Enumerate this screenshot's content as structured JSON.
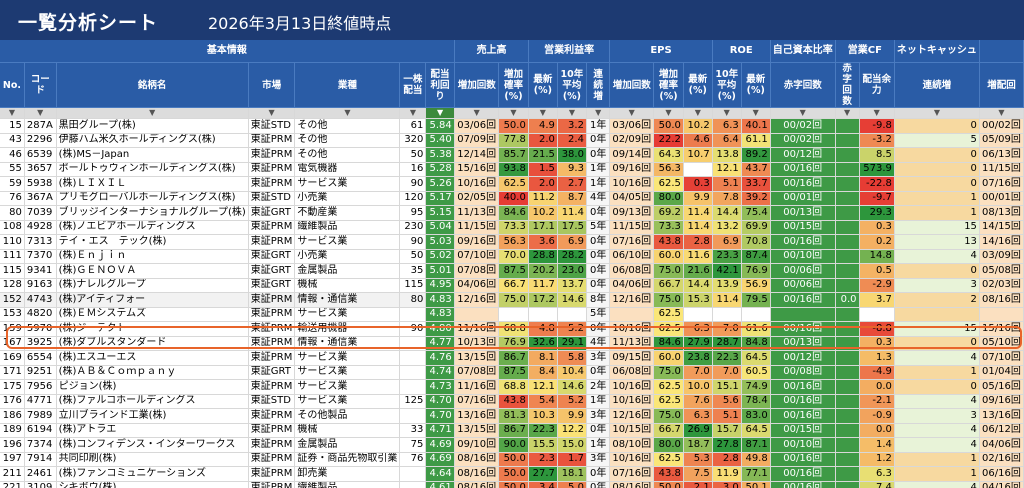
{
  "title": "一覧分析シート",
  "as_of": "2026年3月13日終値時点",
  "groups": [
    "基本情報",
    "売上高",
    "営業利益率",
    "EPS",
    "ROE",
    "自己資本比率",
    "営業CF",
    "ネットキャッシュ",
    ""
  ],
  "columns": [
    "No.",
    "コード",
    "銘柄名",
    "市場",
    "業種",
    "一株配当",
    "配当利回り",
    "増加回数",
    "増加確率(%)",
    "最新(%)",
    "10年平均(%)",
    "連続増",
    "増加回数",
    "増加確率(%)",
    "最新(%)",
    "10年平均(%)",
    "最新(%)",
    "赤字回数",
    "赤字回数",
    "配当余力",
    "連続増",
    "増配回"
  ],
  "filter_glyph": "▼",
  "highlight_index": 12,
  "rows": [
    {
      "no": "15",
      "code": "287A",
      "name": "黒田グループ(株)",
      "market": "東証STD",
      "sector": "その他",
      "div": "61",
      "yield": "5.84",
      "c": [
        "03/06回",
        "50.0",
        "4.9",
        "3.2",
        "1年",
        "03/06回",
        "50.0",
        "10.2",
        "6.3",
        "40.1",
        "00/02回",
        "",
        "-9.8",
        "0",
        "00/02回"
      ]
    },
    {
      "no": "43",
      "code": "2296",
      "name": "伊藤ハム米久ホールディングス(株)",
      "market": "東証PRM",
      "sector": "その他",
      "div": "320",
      "yield": "5.40",
      "c": [
        "07/09回",
        "77.8",
        "2.0",
        "2.4",
        "0年",
        "02/09回",
        "22.2",
        "4.6",
        "6.4",
        "61.1",
        "00/02回",
        "",
        "-3.2",
        "5",
        "05/09回"
      ]
    },
    {
      "no": "46",
      "code": "6539",
      "name": "(株)MS－Japan",
      "market": "東証PRM",
      "sector": "その他",
      "div": "50",
      "yield": "5.38",
      "c": [
        "12/14回",
        "85.7",
        "21.5",
        "38.0",
        "0年",
        "09/14回",
        "64.3",
        "10.7",
        "13.8",
        "89.2",
        "00/12回",
        "",
        "8.5",
        "0",
        "06/13回"
      ]
    },
    {
      "no": "55",
      "code": "3657",
      "name": "ポールトゥウィンホールディングス(株)",
      "market": "東証PRM",
      "sector": "電気機器",
      "div": "16",
      "yield": "5.28",
      "c": [
        "15/16回",
        "93.8",
        "1.5",
        "9.3",
        "1年",
        "09/16回",
        "56.3",
        "",
        "12.1",
        "43.7",
        "00/16回",
        "",
        "573.9",
        "0",
        "11/15回"
      ]
    },
    {
      "no": "59",
      "code": "5938",
      "name": "(株)ＬＩＸＩＬ",
      "market": "東証PRM",
      "sector": "サービス業",
      "div": "90",
      "yield": "5.26",
      "c": [
        "10/16回",
        "62.5",
        "2.0",
        "2.7",
        "1年",
        "10/16回",
        "62.5",
        "0.3",
        "5.1",
        "33.7",
        "00/16回",
        "",
        "-22.8",
        "0",
        "07/16回"
      ]
    },
    {
      "no": "76",
      "code": "367A",
      "name": "プリモグローバルホールディングス(株)",
      "market": "東証STD",
      "sector": "小売業",
      "div": "120",
      "yield": "5.17",
      "c": [
        "02/05回",
        "40.0",
        "11.2",
        "8.7",
        "4年",
        "04/05回",
        "80.0",
        "9.9",
        "7.8",
        "39.2",
        "00/01回",
        "",
        "-9.7",
        "1",
        "00/01回"
      ]
    },
    {
      "no": "80",
      "code": "7039",
      "name": "ブリッジインターナショナルグループ(株)",
      "market": "東証GRT",
      "sector": "不動産業",
      "div": "95",
      "yield": "5.15",
      "c": [
        "11/13回",
        "84.6",
        "10.2",
        "11.4",
        "0年",
        "09/13回",
        "69.2",
        "11.4",
        "14.4",
        "75.4",
        "00/13回",
        "",
        "29.3",
        "1",
        "08/13回"
      ]
    },
    {
      "no": "108",
      "code": "4928",
      "name": "(株)ノエビアホールディングス",
      "market": "東証PRM",
      "sector": "繊維製品",
      "div": "230",
      "yield": "5.04",
      "c": [
        "11/15回",
        "73.3",
        "17.1",
        "17.5",
        "5年",
        "11/15回",
        "73.3",
        "11.4",
        "13.2",
        "69.9",
        "00/15回",
        "",
        "0.3",
        "15",
        "14/15回"
      ]
    },
    {
      "no": "110",
      "code": "7313",
      "name": "テイ・エス　テック(株)",
      "market": "東証PRM",
      "sector": "サービス業",
      "div": "90",
      "yield": "5.03",
      "c": [
        "09/16回",
        "56.3",
        "3.6",
        "6.9",
        "0年",
        "07/16回",
        "43.8",
        "2.8",
        "6.9",
        "70.8",
        "00/16回",
        "",
        "0.2",
        "13",
        "14/16回"
      ]
    },
    {
      "no": "111",
      "code": "7370",
      "name": "(株)Ｅｎｊｉｎ",
      "market": "東証GRT",
      "sector": "小売業",
      "div": "50",
      "yield": "5.02",
      "c": [
        "07/10回",
        "70.0",
        "28.8",
        "28.2",
        "0年",
        "06/10回",
        "60.0",
        "11.6",
        "23.3",
        "87.4",
        "00/10回",
        "",
        "14.8",
        "4",
        "03/09回"
      ]
    },
    {
      "no": "115",
      "code": "9341",
      "name": "(株)ＧＥＮＯＶＡ",
      "market": "東証GRT",
      "sector": "金属製品",
      "div": "35",
      "yield": "5.01",
      "c": [
        "07/08回",
        "87.5",
        "20.2",
        "23.0",
        "0年",
        "06/08回",
        "75.0",
        "21.6",
        "42.1",
        "76.9",
        "00/06回",
        "",
        "0.5",
        "0",
        "05/08回"
      ]
    },
    {
      "no": "128",
      "code": "9163",
      "name": "(株)ナレルグループ",
      "market": "東証GRT",
      "sector": "機械",
      "div": "115",
      "yield": "4.95",
      "c": [
        "04/06回",
        "66.7",
        "11.7",
        "13.7",
        "0年",
        "04/06回",
        "66.7",
        "14.4",
        "13.9",
        "56.9",
        "00/06回",
        "",
        "-2.9",
        "3",
        "02/03回"
      ]
    },
    {
      "no": "152",
      "code": "4743",
      "name": "(株)アイティフォー",
      "market": "東証PRM",
      "sector": "情報・通信業",
      "div": "80",
      "yield": "4.83",
      "c": [
        "12/16回",
        "75.0",
        "17.2",
        "14.6",
        "8年",
        "12/16回",
        "75.0",
        "15.3",
        "11.4",
        "79.5",
        "00/16回",
        "0.0",
        "3.7",
        "2",
        "08/16回"
      ]
    },
    {
      "no": "153",
      "code": "4820",
      "name": "(株)ＥＭシステムズ",
      "market": "東証PRM",
      "sector": "サービス業",
      "div": "",
      "yield": "4.83",
      "c": [
        "",
        "",
        "",
        "",
        "5年",
        "",
        "62.5",
        "",
        "",
        "",
        "",
        "",
        "",
        "",
        ""
      ]
    },
    {
      "no": "159",
      "code": "5970",
      "name": "(株)ジーテクト",
      "market": "東証PRM",
      "sector": "輸送用機器",
      "div": "90",
      "yield": "4.80",
      "c": [
        "11/16回",
        "68.8",
        "4.8",
        "5.2",
        "0年",
        "10/16回",
        "62.5",
        "6.3",
        "7.0",
        "61.6",
        "00/16回",
        "",
        "-8.8",
        "15",
        "15/16回"
      ]
    },
    {
      "no": "167",
      "code": "3925",
      "name": "(株)ダブルスタンダード",
      "market": "東証PRM",
      "sector": "情報・通信業",
      "div": "",
      "yield": "4.77",
      "c": [
        "10/13回",
        "76.9",
        "32.6",
        "29.1",
        "4年",
        "11/13回",
        "84.6",
        "27.9",
        "28.7",
        "84.8",
        "00/13回",
        "",
        "0.3",
        "0",
        "05/10回"
      ]
    },
    {
      "no": "169",
      "code": "6554",
      "name": "(株)エスユーエス",
      "market": "東証PRM",
      "sector": "サービス業",
      "div": "",
      "yield": "4.76",
      "c": [
        "13/15回",
        "86.7",
        "8.1",
        "5.8",
        "3年",
        "09/15回",
        "60.0",
        "23.8",
        "22.3",
        "64.5",
        "00/12回",
        "",
        "1.3",
        "4",
        "07/10回"
      ]
    },
    {
      "no": "171",
      "code": "9251",
      "name": "(株)ＡＢ＆Ｃｏｍｐａｎｙ",
      "market": "東証GRT",
      "sector": "サービス業",
      "div": "",
      "yield": "4.74",
      "c": [
        "07/08回",
        "87.5",
        "8.4",
        "10.4",
        "0年",
        "06/08回",
        "75.0",
        "7.0",
        "7.0",
        "60.5",
        "00/08回",
        "",
        "-4.9",
        "1",
        "01/04回"
      ]
    },
    {
      "no": "175",
      "code": "7956",
      "name": "ピジョン(株)",
      "market": "東証PRM",
      "sector": "サービス業",
      "div": "",
      "yield": "4.73",
      "c": [
        "11/16回",
        "68.8",
        "12.1",
        "14.6",
        "2年",
        "10/16回",
        "62.5",
        "10.0",
        "15.1",
        "74.9",
        "00/16回",
        "",
        "0.0",
        "0",
        "05/16回"
      ]
    },
    {
      "no": "176",
      "code": "4771",
      "name": "(株)ファルコホールディングス",
      "market": "東証STD",
      "sector": "サービス業",
      "div": "125",
      "yield": "4.70",
      "c": [
        "07/16回",
        "43.8",
        "5.4",
        "5.2",
        "1年",
        "10/16回",
        "62.5",
        "7.6",
        "5.6",
        "78.4",
        "00/16回",
        "",
        "-2.1",
        "4",
        "09/16回"
      ]
    },
    {
      "no": "186",
      "code": "7989",
      "name": "立川ブラインド工業(株)",
      "market": "東証PRM",
      "sector": "その他製品",
      "div": "",
      "yield": "4.70",
      "c": [
        "13/16回",
        "81.3",
        "10.3",
        "9.9",
        "3年",
        "12/16回",
        "75.0",
        "6.3",
        "5.1",
        "83.0",
        "00/16回",
        "",
        "-0.9",
        "3",
        "13/16回"
      ]
    },
    {
      "no": "189",
      "code": "6194",
      "name": "(株)アトラエ",
      "market": "東証PRM",
      "sector": "機械",
      "div": "33",
      "yield": "4.71",
      "c": [
        "13/15回",
        "86.7",
        "22.3",
        "12.2",
        "0年",
        "10/15回",
        "66.7",
        "26.9",
        "15.7",
        "64.5",
        "00/15回",
        "",
        "0.0",
        "4",
        "06/12回"
      ]
    },
    {
      "no": "196",
      "code": "7374",
      "name": "(株)コンフィデンス・インターワークス",
      "market": "東証PRM",
      "sector": "金属製品",
      "div": "75",
      "yield": "4.69",
      "c": [
        "09/10回",
        "90.0",
        "15.5",
        "15.0",
        "1年",
        "08/10回",
        "80.0",
        "18.7",
        "27.8",
        "87.1",
        "00/10回",
        "",
        "1.4",
        "4",
        "04/06回"
      ]
    },
    {
      "no": "197",
      "code": "7914",
      "name": "共同印刷(株)",
      "market": "東証PRM",
      "sector": "証券・商品先物取引業",
      "div": "76",
      "yield": "4.69",
      "c": [
        "08/16回",
        "50.0",
        "2.3",
        "1.7",
        "3年",
        "10/16回",
        "62.5",
        "5.3",
        "2.8",
        "49.8",
        "00/16回",
        "",
        "1.2",
        "1",
        "02/16回"
      ]
    },
    {
      "no": "211",
      "code": "2461",
      "name": "(株)ファンコミュニケーションズ",
      "market": "東証PRM",
      "sector": "卸売業",
      "div": "",
      "yield": "4.64",
      "c": [
        "08/16回",
        "50.0",
        "27.7",
        "18.1",
        "0年",
        "07/16回",
        "43.8",
        "7.5",
        "11.9",
        "77.1",
        "00/16回",
        "",
        "6.3",
        "1",
        "06/16回"
      ]
    },
    {
      "no": "221",
      "code": "3109",
      "name": "シキボウ(株)",
      "market": "東証PRM",
      "sector": "繊維製品",
      "div": "",
      "yield": "4.61",
      "c": [
        "08/16回",
        "50.0",
        "3.4",
        "5.0",
        "0年",
        "08/16回",
        "50.0",
        "2.1",
        "3.0",
        "50.1",
        "00/16回",
        "",
        "7.4",
        "4",
        "04/16回"
      ]
    }
  ]
}
